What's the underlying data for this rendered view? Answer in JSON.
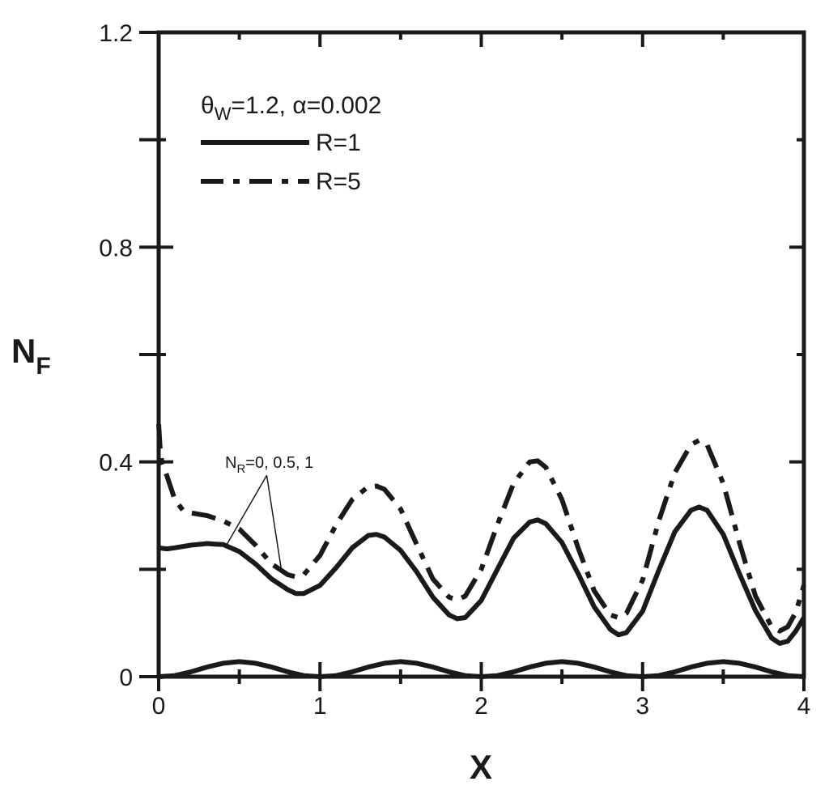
{
  "chart_data": {
    "type": "line",
    "xlabel": "X",
    "ylabel_main": "N",
    "ylabel_sub": "F",
    "xlim": [
      0,
      4
    ],
    "ylim": [
      0,
      1.2
    ],
    "x_ticks": [
      {
        "value": 0,
        "label": "0"
      },
      {
        "value": 1,
        "label": "1"
      },
      {
        "value": 2,
        "label": "2"
      },
      {
        "value": 3,
        "label": "3"
      },
      {
        "value": 4,
        "label": "4"
      }
    ],
    "x_minor_ticks": [
      0.5,
      1.5,
      2.5,
      3.5
    ],
    "y_ticks": [
      {
        "value": 0,
        "label": "0"
      },
      {
        "value": 0.4,
        "label": "0.4"
      },
      {
        "value": 0.8,
        "label": "0.8"
      },
      {
        "value": 1.2,
        "label": "1.2"
      }
    ],
    "y_minor_ticks": [
      0.2,
      0.6,
      1.0
    ],
    "grid": false,
    "legend": {
      "position": "top-left",
      "header_theta": "θ",
      "header_theta_sub": "W",
      "header_rest": "=1.2, α=0.002",
      "entries": [
        {
          "label": "R=1",
          "style": "solid"
        },
        {
          "label": "R=5",
          "style": "dashdot"
        }
      ]
    },
    "annotation": {
      "text_main": "N",
      "text_sub": "R",
      "text_rest": "=0, 0.5, 1",
      "arrow_targets": [
        {
          "x": 0.42,
          "y": 0.245
        },
        {
          "x": 0.76,
          "y": 0.2
        }
      ],
      "arrow_origin": {
        "x": 0.67,
        "y": 0.375
      }
    },
    "series": [
      {
        "name": "R=1",
        "style": "solid",
        "x": [
          0,
          0.05,
          0.1,
          0.2,
          0.3,
          0.35,
          0.4,
          0.5,
          0.6,
          0.7,
          0.8,
          0.85,
          0.9,
          1.0,
          1.1,
          1.2,
          1.3,
          1.35,
          1.4,
          1.5,
          1.6,
          1.7,
          1.8,
          1.85,
          1.9,
          2.0,
          2.1,
          2.2,
          2.3,
          2.35,
          2.4,
          2.5,
          2.6,
          2.7,
          2.8,
          2.85,
          2.9,
          3.0,
          3.1,
          3.2,
          3.3,
          3.35,
          3.4,
          3.5,
          3.6,
          3.7,
          3.8,
          3.85,
          3.9,
          3.95,
          4.0
        ],
        "y": [
          0.24,
          0.238,
          0.24,
          0.245,
          0.248,
          0.247,
          0.246,
          0.233,
          0.21,
          0.182,
          0.162,
          0.155,
          0.155,
          0.17,
          0.203,
          0.24,
          0.263,
          0.265,
          0.26,
          0.235,
          0.195,
          0.148,
          0.115,
          0.108,
          0.11,
          0.142,
          0.2,
          0.258,
          0.288,
          0.292,
          0.285,
          0.25,
          0.192,
          0.13,
          0.088,
          0.078,
          0.082,
          0.122,
          0.198,
          0.27,
          0.31,
          0.316,
          0.31,
          0.265,
          0.192,
          0.123,
          0.072,
          0.062,
          0.066,
          0.085,
          0.11
        ]
      },
      {
        "name": "R=5",
        "style": "dashdot",
        "x": [
          0,
          0.01,
          0.02,
          0.05,
          0.1,
          0.15,
          0.2,
          0.3,
          0.4,
          0.5,
          0.6,
          0.7,
          0.8,
          0.85,
          0.9,
          1.0,
          1.1,
          1.2,
          1.3,
          1.35,
          1.4,
          1.5,
          1.6,
          1.7,
          1.8,
          1.85,
          1.9,
          2.0,
          2.1,
          2.2,
          2.3,
          2.35,
          2.4,
          2.5,
          2.6,
          2.7,
          2.8,
          2.85,
          2.9,
          3.0,
          3.1,
          3.2,
          3.3,
          3.35,
          3.4,
          3.5,
          3.6,
          3.7,
          3.8,
          3.85,
          3.9,
          3.95,
          4.0
        ],
        "y": [
          0.47,
          0.42,
          0.4,
          0.375,
          0.33,
          0.31,
          0.305,
          0.3,
          0.29,
          0.275,
          0.245,
          0.21,
          0.19,
          0.186,
          0.19,
          0.226,
          0.283,
          0.33,
          0.354,
          0.355,
          0.349,
          0.312,
          0.246,
          0.182,
          0.148,
          0.143,
          0.15,
          0.2,
          0.283,
          0.36,
          0.4,
          0.402,
          0.39,
          0.33,
          0.24,
          0.16,
          0.115,
          0.11,
          0.118,
          0.18,
          0.29,
          0.38,
          0.432,
          0.44,
          0.432,
          0.36,
          0.25,
          0.15,
          0.093,
          0.085,
          0.093,
          0.12,
          0.17
        ]
      },
      {
        "name": "",
        "style": "solid",
        "x": [
          0,
          0.1,
          0.2,
          0.3,
          0.4,
          0.5,
          0.6,
          0.7,
          0.8,
          0.9,
          1.0,
          1.1,
          1.2,
          1.3,
          1.4,
          1.5,
          1.6,
          1.7,
          1.8,
          1.9,
          2.0,
          2.1,
          2.2,
          2.3,
          2.4,
          2.5,
          2.6,
          2.7,
          2.8,
          2.9,
          3.0,
          3.1,
          3.2,
          3.3,
          3.4,
          3.5,
          3.6,
          3.7,
          3.8,
          3.9,
          4.0
        ],
        "y": [
          0,
          0.002,
          0.009,
          0.018,
          0.025,
          0.028,
          0.025,
          0.018,
          0.009,
          0.002,
          0,
          0.002,
          0.009,
          0.018,
          0.025,
          0.028,
          0.025,
          0.018,
          0.009,
          0.002,
          0,
          0.002,
          0.009,
          0.018,
          0.025,
          0.028,
          0.025,
          0.018,
          0.009,
          0.002,
          0,
          0.002,
          0.009,
          0.018,
          0.025,
          0.028,
          0.025,
          0.018,
          0.009,
          0.002,
          0
        ]
      }
    ]
  }
}
